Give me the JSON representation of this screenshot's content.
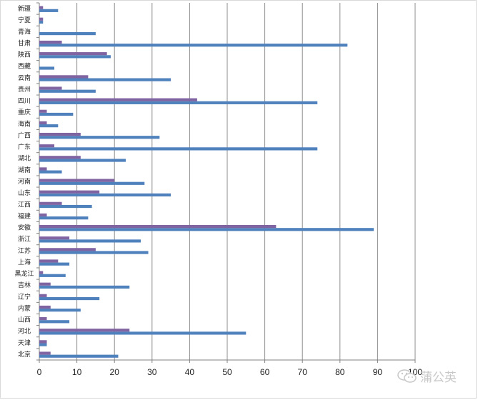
{
  "chart_data": {
    "type": "bar",
    "orientation": "horizontal",
    "categories": [
      "北京",
      "天津",
      "河北",
      "山西",
      "内蒙",
      "辽宁",
      "吉林",
      "黑龙江",
      "上海",
      "江苏",
      "浙江",
      "安徽",
      "福建",
      "江西",
      "山东",
      "河南",
      "湖南",
      "湖北",
      "广东",
      "广西",
      "海南",
      "重庆",
      "四川",
      "贵州",
      "云南",
      "西藏",
      "陕西",
      "甘肃",
      "青海",
      "宁夏",
      "新疆"
    ],
    "series": [
      {
        "color": "#4f81bd",
        "values": [
          21,
          2,
          55,
          8,
          11,
          16,
          24,
          7,
          8,
          29,
          27,
          89,
          13,
          14,
          35,
          28,
          6,
          23,
          74,
          32,
          5,
          9,
          74,
          15,
          35,
          4,
          19,
          82,
          15,
          1,
          5
        ]
      },
      {
        "color": "#8064a2",
        "values": [
          3,
          2,
          24,
          2,
          3,
          2,
          3,
          1,
          5,
          15,
          8,
          63,
          2,
          6,
          16,
          20,
          2,
          11,
          4,
          11,
          2,
          2,
          42,
          6,
          13,
          0,
          18,
          6,
          0,
          1,
          1
        ]
      }
    ],
    "xlim": [
      0,
      100
    ],
    "xticks": [
      0,
      10,
      20,
      30,
      40,
      50,
      60,
      70,
      80,
      90,
      100
    ],
    "grid": "vertical",
    "title": "",
    "xlabel": "",
    "ylabel": "",
    "legend": "none"
  },
  "watermark": {
    "text": "蒲公英",
    "icon": "wechat-icon"
  }
}
